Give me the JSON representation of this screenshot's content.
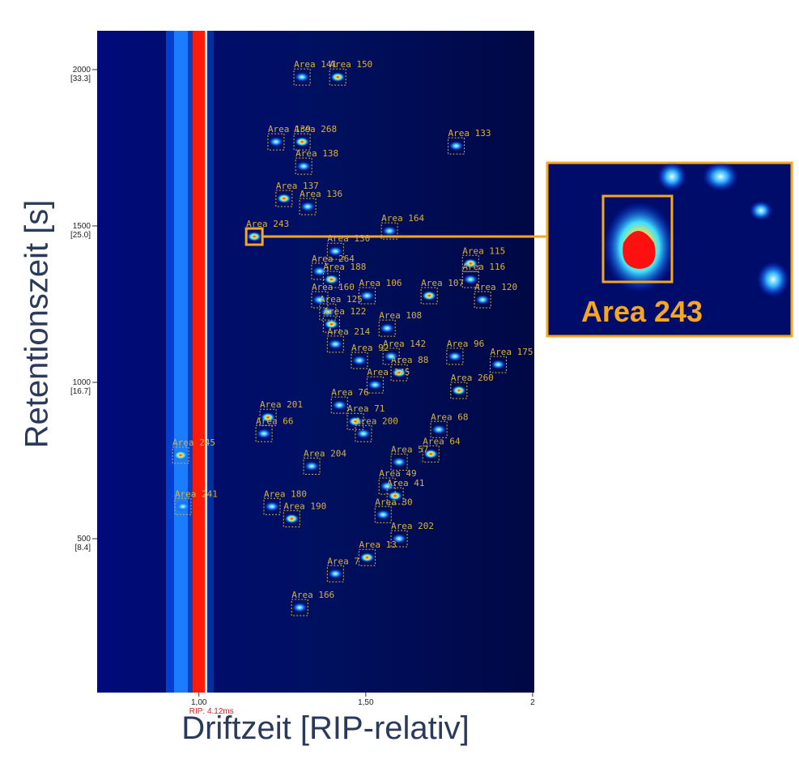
{
  "chart_data": {
    "type": "heatmap",
    "x_label": "Driftzeit [RIP-relativ]",
    "y_label": "Retentionszeit [s]",
    "xlim": [
      0.695,
      2.005
    ],
    "ylim": [
      8,
      2124
    ],
    "xticks": [
      {
        "value": 1.0,
        "label": "1,00"
      },
      {
        "value": 1.5,
        "label": "1,50"
      },
      {
        "value": 2,
        "label": "2"
      }
    ],
    "yticks": [
      500,
      1000,
      1500,
      2000
    ],
    "ytick_sublabels": [
      "[8.4]",
      "[16.7]",
      "[25.0]",
      "[33.3]"
    ],
    "rip_label": "RIP: 4.12ms",
    "label_color": "#d9b23a",
    "highlight_color": "#f5a623",
    "inset_label": "Area 243",
    "areas": [
      {
        "name": "Area 150",
        "x": 1.416,
        "y": 1976
      },
      {
        "name": "Area 141",
        "x": 1.309,
        "y": 1976
      },
      {
        "name": "Area 139",
        "x": 1.231,
        "y": 1769
      },
      {
        "name": "Area 268",
        "x": 1.309,
        "y": 1769
      },
      {
        "name": "Area 138",
        "x": 1.314,
        "y": 1691
      },
      {
        "name": "Area 133",
        "x": 1.771,
        "y": 1756
      },
      {
        "name": "Area 137",
        "x": 1.255,
        "y": 1588
      },
      {
        "name": "Area 136",
        "x": 1.326,
        "y": 1562
      },
      {
        "name": "Area 164",
        "x": 1.571,
        "y": 1484
      },
      {
        "name": "Area 243",
        "x": 1.166,
        "y": 1466
      },
      {
        "name": "Area 130",
        "x": 1.409,
        "y": 1419
      },
      {
        "name": "Area 264",
        "x": 1.362,
        "y": 1355
      },
      {
        "name": "Area 188",
        "x": 1.397,
        "y": 1329
      },
      {
        "name": "Area 106",
        "x": 1.504,
        "y": 1277
      },
      {
        "name": "Area 160",
        "x": 1.362,
        "y": 1264
      },
      {
        "name": "Area 107",
        "x": 1.69,
        "y": 1277
      },
      {
        "name": "Area 120",
        "x": 1.85,
        "y": 1264
      },
      {
        "name": "Area 108",
        "x": 1.564,
        "y": 1173
      },
      {
        "name": "Area 115",
        "x": 1.814,
        "y": 1380
      },
      {
        "name": "Area 116",
        "x": 1.814,
        "y": 1329
      },
      {
        "name": "Area 142",
        "x": 1.576,
        "y": 1083
      },
      {
        "name": "Area 88",
        "x": 1.6,
        "y": 1031
      },
      {
        "name": "Area 96",
        "x": 1.767,
        "y": 1083
      },
      {
        "name": "Area 175",
        "x": 1.897,
        "y": 1057
      },
      {
        "name": "Area 260",
        "x": 1.779,
        "y": 974
      },
      {
        "name": "Area 145",
        "x": 1.528,
        "y": 992
      },
      {
        "name": "Area 76",
        "x": 1.421,
        "y": 927
      },
      {
        "name": "Area 71",
        "x": 1.469,
        "y": 875
      },
      {
        "name": "Area 200",
        "x": 1.493,
        "y": 836
      },
      {
        "name": "Area 68",
        "x": 1.719,
        "y": 849
      },
      {
        "name": "Area 64",
        "x": 1.695,
        "y": 771
      },
      {
        "name": "Area 57",
        "x": 1.6,
        "y": 745
      },
      {
        "name": "Area 49",
        "x": 1.564,
        "y": 668
      },
      {
        "name": "Area 41",
        "x": 1.588,
        "y": 637
      },
      {
        "name": "Area 30",
        "x": 1.552,
        "y": 577
      },
      {
        "name": "Area 202",
        "x": 1.6,
        "y": 500
      },
      {
        "name": "Area 13",
        "x": 1.504,
        "y": 440
      },
      {
        "name": "Area 7",
        "x": 1.409,
        "y": 388
      },
      {
        "name": "Area 166",
        "x": 1.302,
        "y": 280
      },
      {
        "name": "Area 245",
        "x": 0.945,
        "y": 767
      },
      {
        "name": "Area 241",
        "x": 0.952,
        "y": 603
      },
      {
        "name": "Area 180",
        "x": 1.219,
        "y": 603
      },
      {
        "name": "Area 190",
        "x": 1.278,
        "y": 564
      },
      {
        "name": "Area 204",
        "x": 1.338,
        "y": 732
      },
      {
        "name": "Area 66",
        "x": 1.195,
        "y": 836
      },
      {
        "name": "Area 201",
        "x": 1.207,
        "y": 888
      },
      {
        "name": "Area 92",
        "x": 1.481,
        "y": 1070
      },
      {
        "name": "Area 214",
        "x": 1.409,
        "y": 1122
      },
      {
        "name": "Area 122",
        "x": 1.397,
        "y": 1186
      },
      {
        "name": "Area 125",
        "x": 1.386,
        "y": 1225
      }
    ]
  }
}
